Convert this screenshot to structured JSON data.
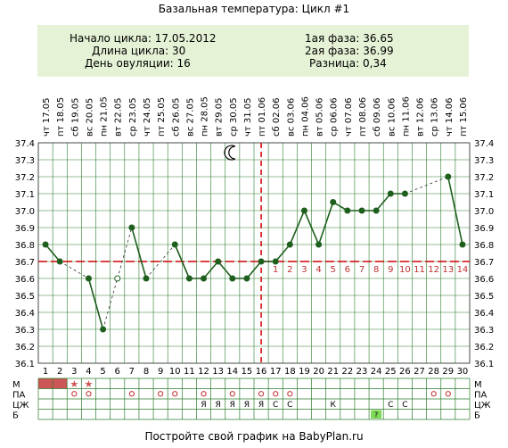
{
  "page": {
    "title": "Базальная температура: Цикл #1",
    "footer": "Постройте свой график на BabyPlan.ru"
  },
  "info": {
    "cycle_start_label": "Начало цикла:",
    "cycle_start_value": "17.05.2012",
    "cycle_length_label": "Длина цикла:",
    "cycle_length_value": "30",
    "ovulation_day_label": "День овуляции:",
    "ovulation_day_value": "16",
    "phase1_label": "1ая фаза:",
    "phase1_value": "36.65",
    "phase2_label": "2ая фаза:",
    "phase2_value": "36.99",
    "diff_label": "Разница:",
    "diff_value": "0,34"
  },
  "colors": {
    "line": "#1e5f1e",
    "grid": "#2e7d2e",
    "ovulation": "#d00000",
    "phase_numbers": "#c03030",
    "menses_fill": "#cc5555",
    "b_marker": "#7ed957",
    "info_bg": "#e6f2d6"
  },
  "icons": {
    "moon": "moon-icon",
    "star": "star-icon"
  },
  "chart_data": {
    "type": "line",
    "title": "Базальная температура: Цикл #1",
    "x": [
      1,
      2,
      3,
      4,
      5,
      6,
      7,
      8,
      9,
      10,
      11,
      12,
      13,
      14,
      15,
      16,
      17,
      18,
      19,
      20,
      21,
      22,
      23,
      24,
      25,
      26,
      27,
      28,
      29,
      30
    ],
    "dates": [
      "17.05",
      "18.05",
      "19.05",
      "20.05",
      "21.05",
      "22.05",
      "23.05",
      "24.05",
      "25.05",
      "26.05",
      "27.05",
      "28.05",
      "29.05",
      "30.05",
      "31.05",
      "01.06",
      "02.06",
      "03.06",
      "04.06",
      "05.06",
      "06.06",
      "07.06",
      "08.06",
      "09.06",
      "10.06",
      "11.06",
      "12.06",
      "13.06",
      "14.06",
      "15.06"
    ],
    "weekdays": [
      "чт",
      "пт",
      "сб",
      "вс",
      "пн",
      "вт",
      "ср",
      "чт",
      "пт",
      "сб",
      "вс",
      "пн",
      "вт",
      "ср",
      "чт",
      "пт",
      "сб",
      "вс",
      "пн",
      "вт",
      "ср",
      "чт",
      "пт",
      "сб",
      "вс",
      "пн",
      "вт",
      "ср",
      "чт",
      "пт"
    ],
    "series": [
      {
        "values": [
          36.8,
          36.7,
          null,
          36.6,
          36.3,
          36.6,
          36.9,
          36.6,
          null,
          36.8,
          36.6,
          36.6,
          36.7,
          36.6,
          36.6,
          36.7,
          36.7,
          36.8,
          37.0,
          36.8,
          37.05,
          37.0,
          37.0,
          37.0,
          37.1,
          37.1,
          null,
          null,
          37.2,
          36.8
        ],
        "hollow_points": [
          6
        ]
      }
    ],
    "cover_line": 36.7,
    "ovulation_day": 16,
    "moon_day": 14,
    "phase_numbers": [
      "1",
      "2",
      "3",
      "4",
      "5",
      "6",
      "7",
      "8",
      "9",
      "10",
      "11",
      "12",
      "13",
      "14"
    ],
    "ylim": [
      36.1,
      37.4
    ],
    "yticks": [
      36.1,
      36.2,
      36.3,
      36.4,
      36.5,
      36.6,
      36.7,
      36.8,
      36.9,
      37.0,
      37.1,
      37.2,
      37.3,
      37.4
    ],
    "ytick_labels": [
      "36.1",
      "36.2",
      "36.3",
      "36.4",
      "36.5",
      "36.6",
      "36.7",
      "36.8",
      "36.9",
      "37.0",
      "37.1",
      "37.2",
      "37.3",
      "37.4"
    ],
    "grid": true,
    "rows": {
      "labels": [
        "М",
        "ПА",
        "ЦЖ",
        "Б"
      ],
      "M_filled_days": [
        1,
        2
      ],
      "M_star_days": [
        3,
        4
      ],
      "PA_circle_days": [
        3,
        4,
        7,
        9,
        10,
        12,
        14,
        16,
        17,
        18,
        28,
        29
      ],
      "CZH_text": {
        "12": "Я",
        "13": "Я",
        "14": "Я",
        "15": "Я",
        "16": "Я",
        "17": "С",
        "18": "С",
        "21": "К",
        "25": "С",
        "26": "С"
      },
      "B_marked_day": 24,
      "B_marked_text": "?"
    }
  }
}
